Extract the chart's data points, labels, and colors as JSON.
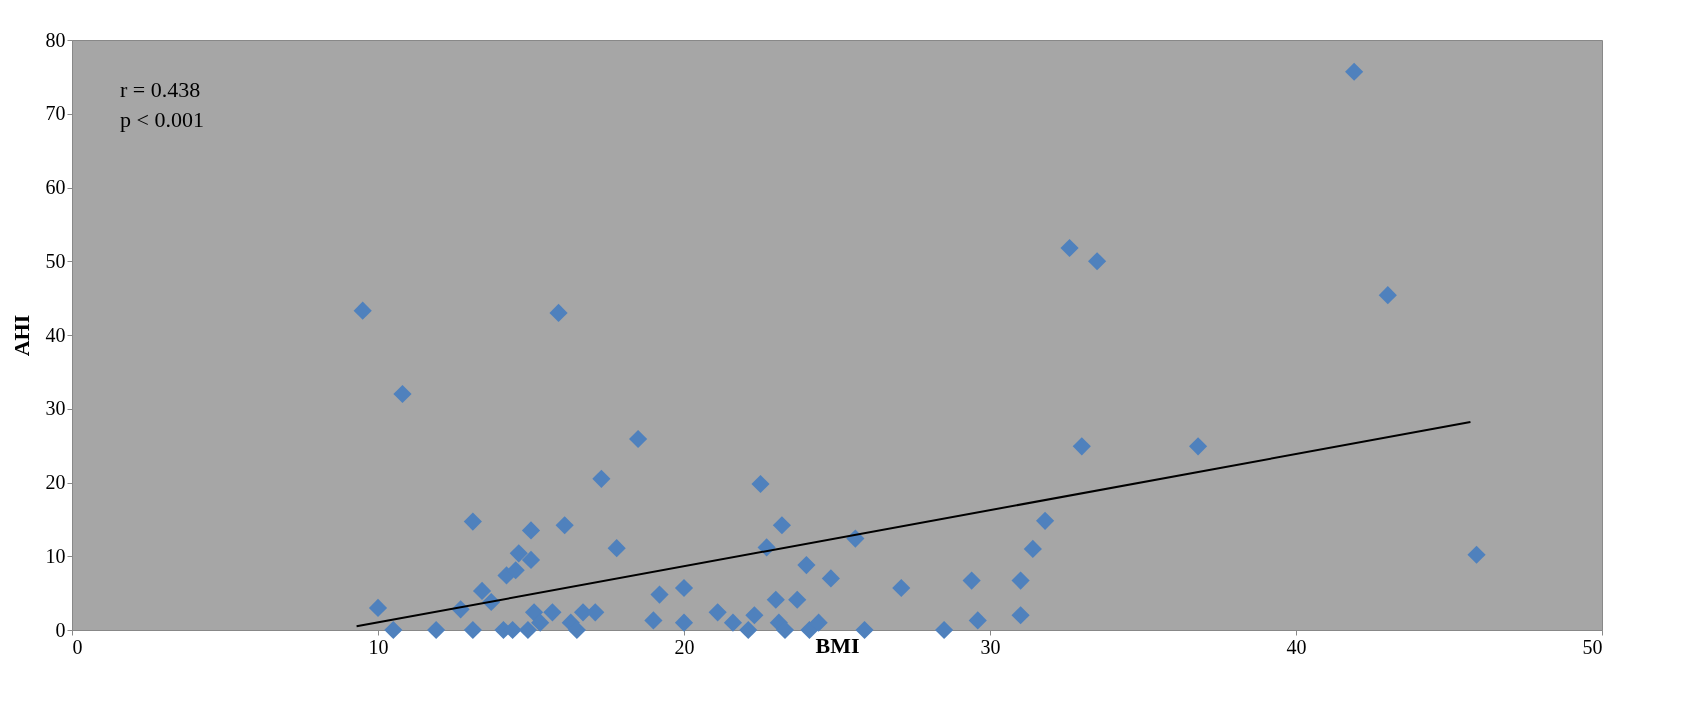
{
  "chart_data": {
    "type": "scatter",
    "xlabel": "BMI",
    "ylabel": "AHI",
    "annotations": [
      "r = 0.438",
      "p < 0.001"
    ],
    "xlim": [
      0,
      50
    ],
    "xticks": [
      0,
      10,
      20,
      30,
      40,
      50
    ],
    "ylim": [
      0,
      80
    ],
    "yticks": [
      0,
      10,
      20,
      30,
      40,
      50,
      60,
      70,
      80
    ],
    "grid": false,
    "marker": "diamond",
    "series": [
      {
        "color": "#4f81bd",
        "x": [
          9.5,
          10.8,
          10,
          10.5,
          11.9,
          12.7,
          13.1,
          13.1,
          13.4,
          13.7,
          14.1,
          14.2,
          14.5,
          14.6,
          15.0,
          15.0,
          14.4,
          14.9,
          15.1,
          15.3,
          15.7,
          15.9,
          16.1,
          16.3,
          16.5,
          16.7,
          17.1,
          17.3,
          17.8,
          18.5,
          19.0,
          19.2,
          20.0,
          20.0,
          21.1,
          21.6,
          22.1,
          22.3,
          22.5,
          22.7,
          23.0,
          23.1,
          23.2,
          23.3,
          23.7,
          24.0,
          24.1,
          24.4,
          24.8,
          25.6,
          25.9,
          27.1,
          28.5,
          29.4,
          29.6,
          31.0,
          31.0,
          31.4,
          31.8,
          32.6,
          33.0,
          33.5,
          36.8,
          41.9,
          43.0,
          45.9
        ],
        "values": [
          43.3,
          32,
          3,
          0,
          0,
          2.8,
          14.7,
          0,
          5.3,
          3.8,
          0,
          7.4,
          8.1,
          10.4,
          9.5,
          13.5,
          0,
          0,
          2.4,
          1,
          2.4,
          43,
          14.2,
          1,
          0,
          2.4,
          2.4,
          20.5,
          11.1,
          25.9,
          1.3,
          4.8,
          1,
          5.7,
          2.4,
          1,
          0,
          2,
          19.8,
          11.2,
          4.1,
          1,
          14.2,
          0,
          4.1,
          8.8,
          0,
          1,
          7,
          12.4,
          0,
          5.7,
          0,
          6.7,
          1.3,
          6.7,
          2,
          11,
          14.8,
          51.8,
          24.9,
          50,
          24.9,
          75.7,
          45.4,
          10.2
        ]
      },
      {
        "type": "line",
        "color": "#000000",
        "marker": "none",
        "line_style": "solid",
        "x": [
          9.3,
          45.7
        ],
        "values": [
          0.5,
          28.2
        ]
      }
    ]
  }
}
